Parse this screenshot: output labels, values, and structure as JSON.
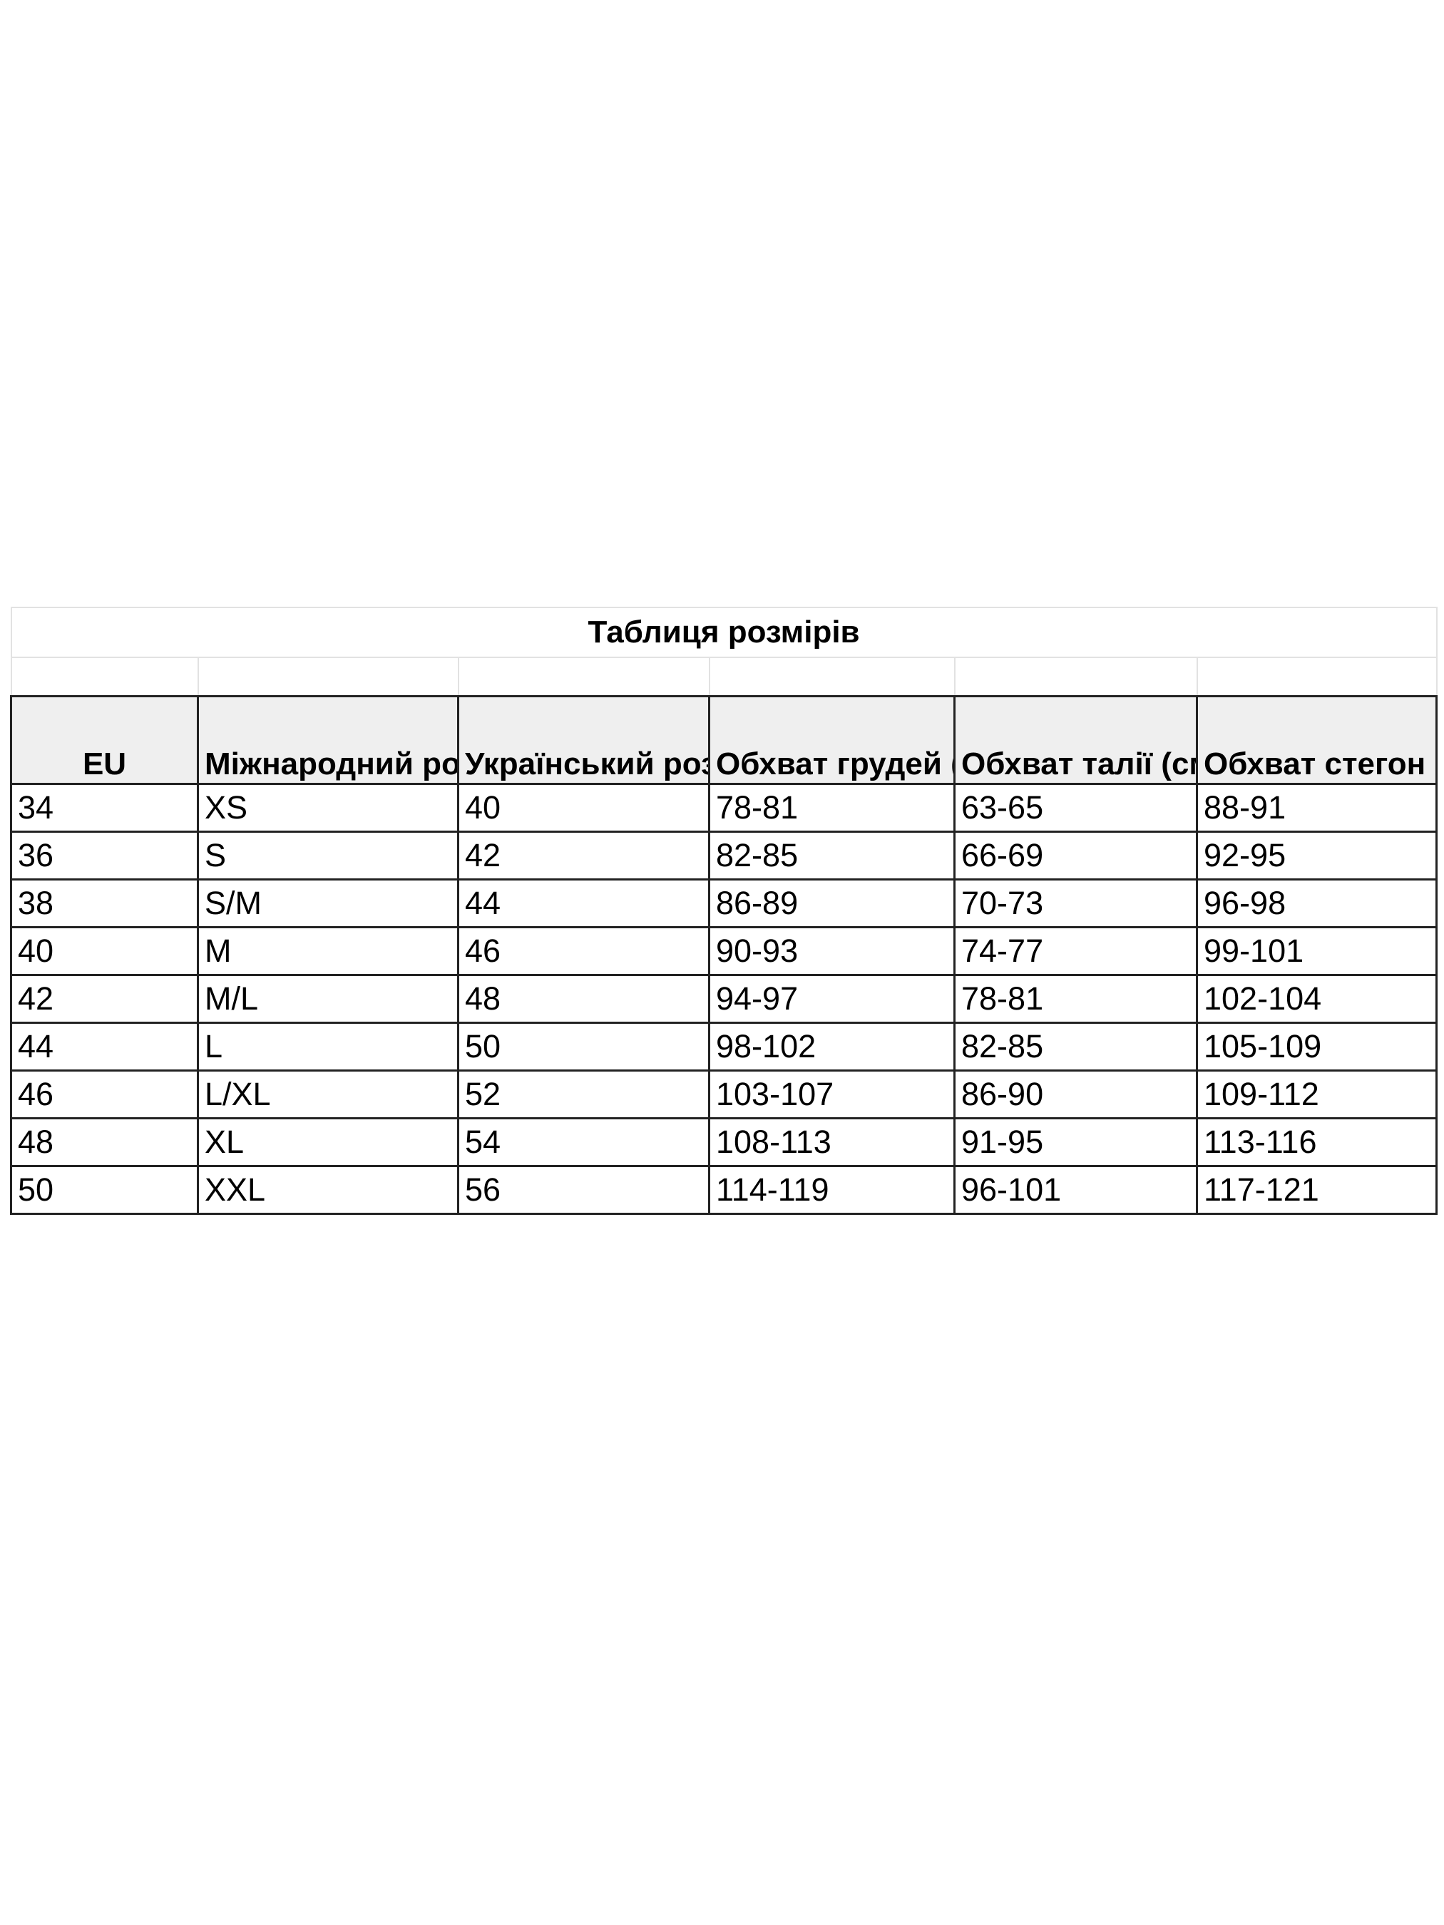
{
  "title": "Таблиця розмірів",
  "headers": [
    "EU",
    "Міжнародний розмір",
    "Український розмір",
    "Обхват грудей (см)",
    "Обхват талії (см)",
    "Обхват стегон (см)"
  ],
  "rows": [
    [
      "34",
      "XS",
      "40",
      "78-81",
      "63-65",
      "88-91"
    ],
    [
      "36",
      "S",
      "42",
      "82-85",
      "66-69",
      "92-95"
    ],
    [
      "38",
      "S/M",
      "44",
      "86-89",
      "70-73",
      "96-98"
    ],
    [
      "40",
      "M",
      "46",
      "90-93",
      "74-77",
      "99-101"
    ],
    [
      "42",
      "M/L",
      "48",
      "94-97",
      "78-81",
      "102-104"
    ],
    [
      "44",
      "L",
      "50",
      "98-102",
      "82-85",
      "105-109"
    ],
    [
      "46",
      "L/XL",
      "52",
      "103-107",
      "86-90",
      "109-112"
    ],
    [
      "48",
      "XL",
      "54",
      "108-113",
      "91-95",
      "113-116"
    ],
    [
      "50",
      "XXL",
      "56",
      "114-119",
      "96-101",
      "117-121"
    ]
  ],
  "colors": {
    "header_bg": "#efefef",
    "border": "#222222",
    "light_border": "#e2e2e2"
  }
}
